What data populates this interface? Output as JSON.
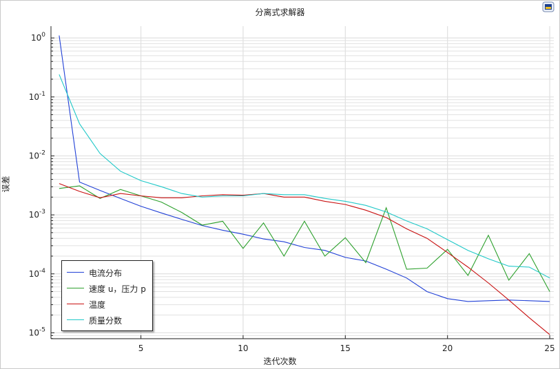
{
  "chart_data": {
    "type": "line",
    "title": "分离式求解器",
    "xlabel": "迭代次数",
    "ylabel": "误差",
    "yscale": "log",
    "xlim": [
      0.6,
      25.2
    ],
    "ylim_exp": [
      -5.1,
      0.2
    ],
    "xticks": [
      5,
      10,
      15,
      20,
      25
    ],
    "yticks_exp": [
      0,
      -1,
      -2,
      -3,
      -4,
      -5
    ],
    "grid": true,
    "legend_position": "bottom-left",
    "x": [
      1,
      2,
      3,
      4,
      5,
      6,
      7,
      8,
      9,
      10,
      11,
      12,
      13,
      14,
      15,
      16,
      17,
      18,
      19,
      20,
      21,
      22,
      23,
      24,
      25
    ],
    "series": [
      {
        "name": "电流分布",
        "color": "#1f3fd6",
        "values": [
          1.1,
          0.0036,
          0.0026,
          0.0019,
          0.0014,
          0.00108,
          0.00084,
          0.00066,
          0.00055,
          0.00047,
          0.00039,
          0.00035,
          0.00028,
          0.00025,
          0.00019,
          0.000165,
          0.00012,
          8.5e-05,
          5e-05,
          3.8e-05,
          3.4e-05,
          3.5e-05,
          3.6e-05,
          3.5e-05,
          3.4e-05
        ]
      },
      {
        "name": "速度 u，压力 p",
        "color": "#2ca02c",
        "values": [
          0.0028,
          0.0031,
          0.0019,
          0.0027,
          0.0021,
          0.00165,
          0.0011,
          0.00067,
          0.00078,
          0.00027,
          0.00073,
          0.0002,
          0.00078,
          0.0002,
          0.00041,
          0.000155,
          0.00132,
          0.00012,
          0.000125,
          0.00026,
          9.4e-05,
          0.00045,
          7.8e-05,
          0.00022,
          5e-05
        ]
      },
      {
        "name": "温度",
        "color": "#c80f0f",
        "values": [
          0.0034,
          0.0025,
          0.00195,
          0.0023,
          0.0021,
          0.00195,
          0.00195,
          0.0021,
          0.0022,
          0.00215,
          0.0023,
          0.002,
          0.002,
          0.0017,
          0.0015,
          0.0012,
          0.0009,
          0.00058,
          0.0004,
          0.00023,
          0.00013,
          7e-05,
          3.6e-05,
          1.8e-05,
          9.3e-06
        ]
      },
      {
        "name": "质量分数",
        "color": "#1fc8c8",
        "values": [
          0.24,
          0.035,
          0.011,
          0.0055,
          0.0038,
          0.003,
          0.0023,
          0.002,
          0.0021,
          0.0021,
          0.0023,
          0.0022,
          0.0022,
          0.0019,
          0.0017,
          0.00145,
          0.00112,
          0.00079,
          0.00058,
          0.00038,
          0.00025,
          0.00018,
          0.000135,
          0.00013,
          8.5e-05
        ]
      }
    ]
  },
  "icons": {
    "corner": "export-image-icon"
  },
  "colors": {
    "grid": "#e0e0e0",
    "axis": "#222222",
    "background": "#ffffff"
  }
}
